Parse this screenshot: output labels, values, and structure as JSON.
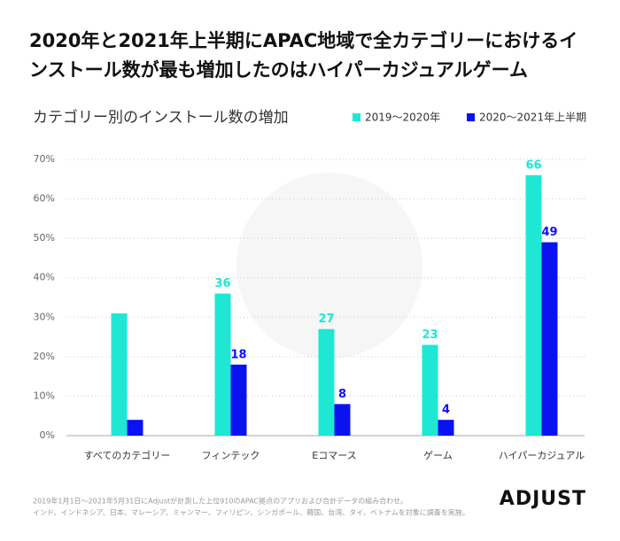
{
  "chart_data": {
    "type": "bar",
    "title": "2020年と2021年上半期にAPAC地域で全カテゴリーにおけるインストール数が最も増加したのはハイパーカジュアルゲーム",
    "subtitle": "カテゴリー別のインストール数の増加",
    "categories": [
      "すべてのカテゴリー",
      "フィンテック",
      "Eコマース",
      "ゲーム",
      "ハイパーカジュアル"
    ],
    "series": [
      {
        "name": "2019〜2020年",
        "color": "#1ee8d4",
        "values": [
          31,
          36,
          27,
          23,
          66
        ],
        "value_labels": [
          null,
          "36",
          "27",
          "23",
          "66"
        ]
      },
      {
        "name": "2020〜2021年上半期",
        "color": "#0b12f2",
        "values": [
          4,
          18,
          8,
          4,
          49
        ],
        "value_labels": [
          null,
          "18",
          "8",
          "4",
          "49"
        ]
      }
    ],
    "ylim": [
      0,
      70
    ],
    "yticks": [
      {
        "value": 0,
        "label": "0%"
      },
      {
        "value": 10,
        "label": "10%"
      },
      {
        "value": 20,
        "label": "20%"
      },
      {
        "value": 30,
        "label": "30%"
      },
      {
        "value": 40,
        "label": "40%"
      },
      {
        "value": 50,
        "label": "50%"
      },
      {
        "value": 60,
        "label": "60%"
      },
      {
        "value": 70,
        "label": "70%"
      }
    ],
    "grid": true,
    "legend": "top-right",
    "footnotes": [
      "2019年1月1日〜2021年5月31日にAdjustが計測した上位910のAPAC拠点のアプリおよび合計データの組み合わせ。",
      "インド、インドネシア、日本、マレーシア、ミャンマー、フィリピン、シンガポール、韓国、台湾、タイ、ベトナムを対象に調査を実施。"
    ],
    "logo": "ADJUST"
  }
}
